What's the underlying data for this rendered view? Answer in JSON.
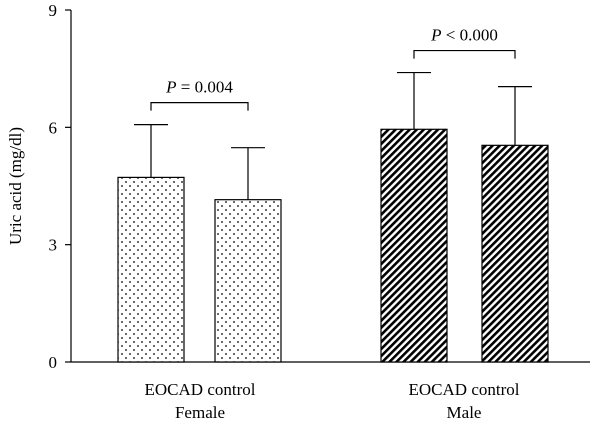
{
  "chart_data": {
    "type": "bar",
    "ylabel": "Uric acid (mg/dl)",
    "ylim": [
      0,
      9
    ],
    "yticks": [
      0,
      3,
      6,
      9
    ],
    "grid": false,
    "groups": [
      {
        "name": "Female",
        "bar_labels_line": "EOCAD control",
        "bars": [
          {
            "label": "EOCAD",
            "value": 4.72,
            "error": 1.35,
            "pattern": "dots"
          },
          {
            "label": "control",
            "value": 4.15,
            "error": 1.33,
            "pattern": "dots"
          }
        ],
        "significance": {
          "prefix": "P",
          "text": " = 0.004"
        }
      },
      {
        "name": "Male",
        "bar_labels_line": "EOCAD control",
        "bars": [
          {
            "label": "EOCAD",
            "value": 5.95,
            "error": 1.45,
            "pattern": "hatch"
          },
          {
            "label": "control",
            "value": 5.54,
            "error": 1.5,
            "pattern": "hatch"
          }
        ],
        "significance": {
          "prefix": "P",
          "text": " < 0.000"
        }
      }
    ]
  }
}
